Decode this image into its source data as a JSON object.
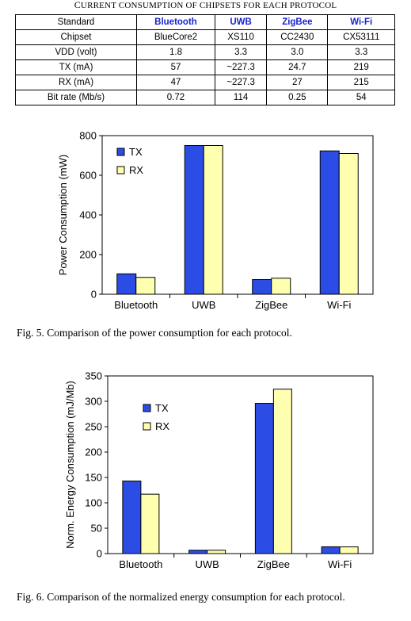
{
  "table": {
    "title_first": "C",
    "title_rest": "URRENT CONSUMPTION OF CHIPSETS FOR EACH PROTOCOL",
    "header": [
      "Standard",
      "Bluetooth",
      "UWB",
      "ZigBee",
      "Wi-Fi"
    ],
    "rows": [
      [
        "Chipset",
        "BlueCore2",
        "XS110",
        "CC2430",
        "CX53111"
      ],
      [
        "VDD (volt)",
        "1.8",
        "3.3",
        "3.0",
        "3.3"
      ],
      [
        "TX (mA)",
        "57",
        "~227.3",
        "24.7",
        "219"
      ],
      [
        "RX (mA)",
        "47",
        "~227.3",
        "27",
        "215"
      ],
      [
        "Bit rate (Mb/s)",
        "0.72",
        "114",
        "0.25",
        "54"
      ]
    ]
  },
  "chart_data": [
    {
      "type": "bar",
      "title": "",
      "ylabel": "Power Consumption (mW)",
      "xlabel": "",
      "categories": [
        "Bluetooth",
        "UWB",
        "ZigBee",
        "Wi-Fi"
      ],
      "series": [
        {
          "name": "TX",
          "values": [
            103,
            750,
            74,
            723
          ]
        },
        {
          "name": "RX",
          "values": [
            85,
            750,
            81,
            710
          ]
        }
      ],
      "ylim": [
        0,
        800
      ],
      "yticks": [
        0,
        200,
        400,
        600,
        800
      ],
      "legend": "top-left",
      "grid": false,
      "colors": [
        "#2b4de6",
        "#ffffb0"
      ]
    },
    {
      "type": "bar",
      "title": "",
      "ylabel": "Norm. Energy Consumption (mJ/Mb)",
      "xlabel": "",
      "categories": [
        "Bluetooth",
        "UWB",
        "ZigBee",
        "Wi-Fi"
      ],
      "series": [
        {
          "name": "TX",
          "values": [
            143,
            6.6,
            296,
            13.4
          ]
        },
        {
          "name": "RX",
          "values": [
            117,
            6.6,
            324,
            13.2
          ]
        }
      ],
      "ylim": [
        0,
        350
      ],
      "yticks": [
        0,
        50,
        100,
        150,
        200,
        250,
        300,
        350
      ],
      "legend": "top-left",
      "grid": false,
      "colors": [
        "#2b4de6",
        "#ffffb0"
      ]
    }
  ],
  "captions": {
    "fig5": "Fig. 5.  Comparison of the power consumption for each protocol.",
    "fig6": "Fig. 6.  Comparison of the normalized energy consumption for each protocol."
  }
}
